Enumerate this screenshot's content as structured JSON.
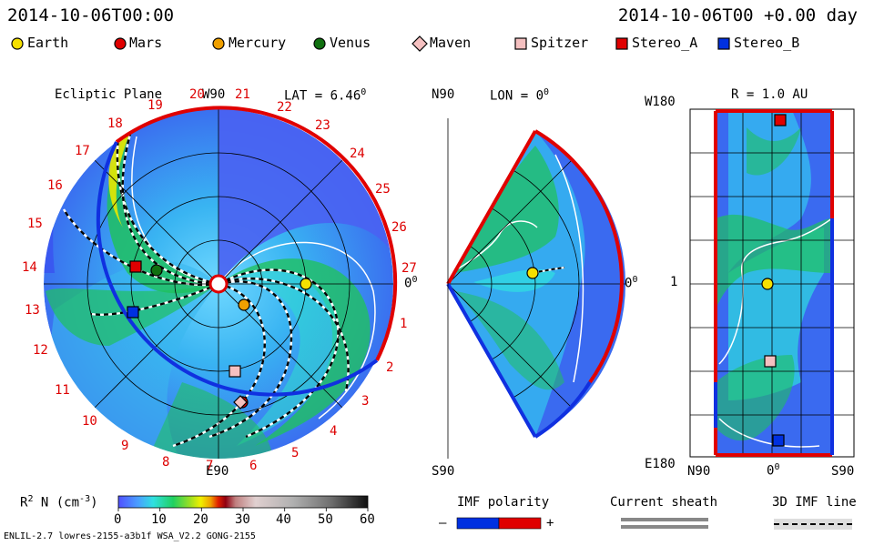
{
  "header": {
    "timestamp_left": "2014-10-06T00:00",
    "timestamp_right": "2014-10-06T00 +0.00 day"
  },
  "legend": [
    {
      "label": "Earth",
      "shape": "circle",
      "color": "#f5e000"
    },
    {
      "label": "Mars",
      "shape": "circle",
      "color": "#e00000"
    },
    {
      "label": "Mercury",
      "shape": "circle",
      "color": "#f0a000"
    },
    {
      "label": "Venus",
      "shape": "circle",
      "color": "#107010"
    },
    {
      "label": "Maven",
      "shape": "diamond",
      "color": "#f5c0c0"
    },
    {
      "label": "Spitzer",
      "shape": "square",
      "color": "#f5c0c0"
    },
    {
      "label": "Stereo_A",
      "shape": "square",
      "color": "#e00000"
    },
    {
      "label": "Stereo_B",
      "shape": "square",
      "color": "#0030e0"
    }
  ],
  "ecliptic": {
    "title": "Ecliptic Plane",
    "top_label": "W90",
    "bottom_label": "E90",
    "right_label": "0",
    "right_sup": "0",
    "lat_label": "LAT = 6.46",
    "lat_sup": "0",
    "carrington": [
      "27",
      "1",
      "2",
      "3",
      "4",
      "5",
      "6",
      "7",
      "8",
      "9",
      "10",
      "11",
      "12",
      "13",
      "14",
      "15",
      "16",
      "17",
      "18",
      "19",
      "20",
      "21",
      "22",
      "23",
      "24",
      "25",
      "26"
    ]
  },
  "meridional": {
    "top_left": "N90",
    "bottom_left": "S90",
    "lon_label": "LON = 0",
    "lon_sup": "0",
    "right_label": "0",
    "right_sup": "0"
  },
  "radial": {
    "title": "R = 1.0 AU",
    "top_left": "W180",
    "mid_left": "1",
    "bottom_left": "E180",
    "bottom_ticks": [
      "N90",
      "0",
      "S90"
    ],
    "bottom_zero_sup": "0"
  },
  "colorbar": {
    "label_prefix": "R",
    "label_sup": "2",
    "label_suffix": " N (cm",
    "label_sup2": "-3",
    "label_end": ")",
    "ticks": [
      "0",
      "10",
      "20",
      "30",
      "40",
      "50",
      "60"
    ],
    "min": 0,
    "max": 60
  },
  "imf": {
    "title": "IMF polarity",
    "minus": "–",
    "plus": "+",
    "neg_color": "#0030e0",
    "pos_color": "#e00000"
  },
  "sheath": {
    "title": "Current sheath"
  },
  "imfline": {
    "title": "3D IMF line"
  },
  "footer": {
    "model_info": "ENLIL-2.7 lowres-2155-a3b1f WSA_V2.2 GONG-2155"
  }
}
